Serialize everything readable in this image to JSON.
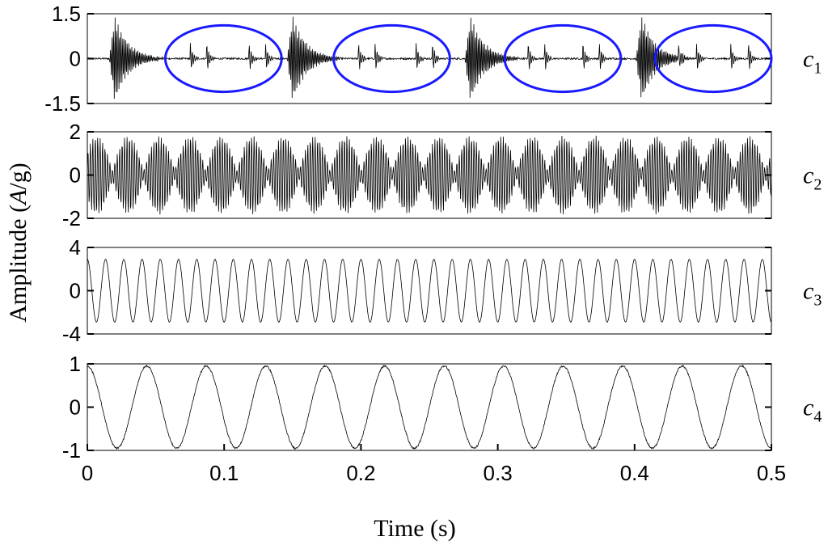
{
  "chart_data": {
    "type": "line",
    "xlabel": "Time (s)",
    "ylabel_plain": "Amplitude (",
    "ylabel_italic": "A",
    "ylabel_tail": "/g)",
    "xlim": [
      0,
      0.5
    ],
    "xticks": [
      0,
      0.1,
      0.2,
      0.3,
      0.4,
      0.5
    ],
    "xtick_labels": [
      "0",
      "0.1",
      "0.2",
      "0.3",
      "0.4",
      "0.5"
    ],
    "grid": false,
    "highlight_color": "#1a1aff",
    "line_color": "#000000",
    "panels": [
      {
        "label": "c",
        "label_sub": "1",
        "ylim": [
          -1.5,
          1.5
        ],
        "yticks": [
          -1.5,
          0,
          1.5
        ],
        "ytick_labels": [
          "-1.5",
          "0",
          "1.5"
        ],
        "signal": "impulsive bursts",
        "burst_times": [
          0.02,
          0.15,
          0.28,
          0.405
        ],
        "burst_peak": 1.5,
        "highlight_regions": [
          [
            0.057,
            0.142
          ],
          [
            0.18,
            0.265
          ],
          [
            0.305,
            0.39
          ],
          [
            0.415,
            0.5
          ]
        ]
      },
      {
        "label": "c",
        "label_sub": "2",
        "ylim": [
          -2,
          2
        ],
        "yticks": [
          -2,
          0,
          2
        ],
        "ytick_labels": [
          "-2",
          "0",
          "2"
        ],
        "signal": "amplitude-modulated oscillation",
        "peak_amplitude": 1.9
      },
      {
        "label": "c",
        "label_sub": "3",
        "ylim": [
          -4,
          4
        ],
        "yticks": [
          -4,
          0,
          4
        ],
        "ytick_labels": [
          "-4",
          "0",
          "4"
        ],
        "signal": "sinusoid",
        "amplitude": 2.9,
        "cycles_in_window": 37.5
      },
      {
        "label": "c",
        "label_sub": "4",
        "ylim": [
          -1,
          1
        ],
        "yticks": [
          -1,
          0,
          1
        ],
        "ytick_labels": [
          "-1",
          "0",
          "1"
        ],
        "signal": "sinusoid",
        "amplitude": 0.95,
        "cycles_in_window": 11.5
      }
    ]
  }
}
